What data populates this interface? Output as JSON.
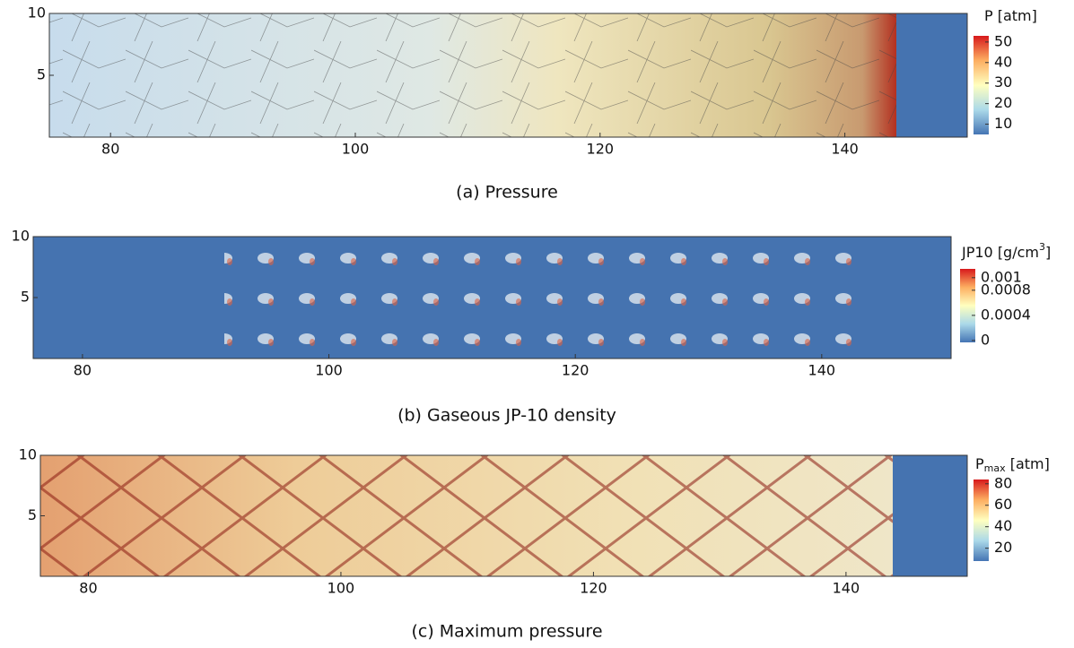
{
  "panels": [
    {
      "caption": "(a) Pressure",
      "xlim": [
        75,
        150
      ],
      "xticks": [
        80,
        100,
        120,
        140
      ],
      "ylim": [
        0,
        10
      ],
      "yticks": [
        5,
        10
      ],
      "colorbar": {
        "title_parts": [
          "P [atm]"
        ],
        "range": [
          5,
          53
        ],
        "ticks": [
          10,
          20,
          30,
          40,
          50
        ]
      }
    },
    {
      "caption": "(b) Gaseous JP-10 density",
      "xlim": [
        76,
        150.5
      ],
      "xticks": [
        80,
        100,
        120,
        140
      ],
      "ylim": [
        0,
        10
      ],
      "yticks": [
        5,
        10
      ],
      "colorbar": {
        "title_parts": [
          "JP10 [g/cm",
          "3",
          "]"
        ],
        "range": [
          -3e-05,
          0.00114
        ],
        "ticks": [
          0,
          0.0004,
          0.0008,
          0.001
        ]
      }
    },
    {
      "caption": "(c) Maximum pressure",
      "xlim": [
        76.2,
        149.6
      ],
      "xticks": [
        80,
        100,
        120,
        140
      ],
      "ylim": [
        0,
        10
      ],
      "yticks": [
        5,
        10
      ],
      "colorbar": {
        "title_parts": [
          "P",
          "max",
          " [atm]"
        ],
        "range": [
          8,
          84
        ],
        "ticks": [
          20,
          40,
          60,
          80
        ]
      }
    }
  ]
}
